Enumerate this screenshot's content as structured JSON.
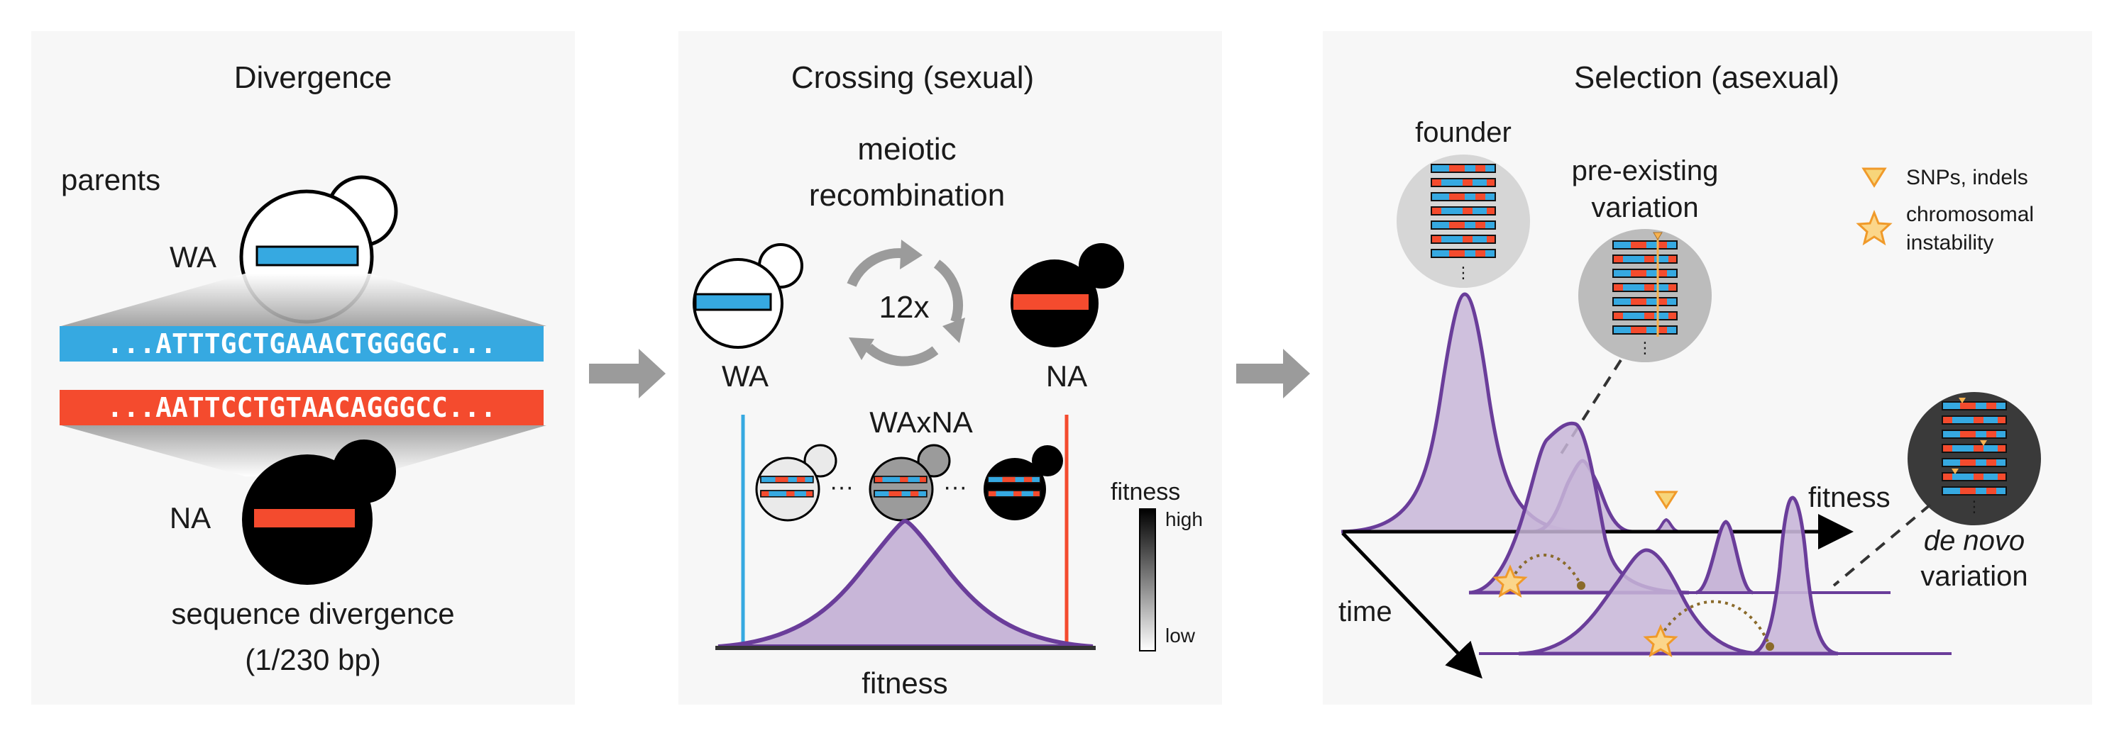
{
  "panels": {
    "divergence": {
      "title": "Divergence",
      "parents_label": "parents",
      "wa_label": "WA",
      "na_label": "NA",
      "wa_sequence": "...ATTTGCTGAAACTGGGGC...",
      "na_sequence": "...AATTCCTGTAACAGGGCC...",
      "caption_line1": "sequence divergence",
      "caption_line2": "(1/230 bp)"
    },
    "crossing": {
      "title": "Crossing (sexual)",
      "process_line1": "meiotic",
      "process_line2": "recombination",
      "cycles": "12x",
      "wa_label": "WA",
      "na_label": "NA",
      "hybrid_label": "WAxNA",
      "ellipsis": "···",
      "axis_label": "fitness",
      "colorbar_title": "fitness",
      "colorbar_high": "high",
      "colorbar_low": "low"
    },
    "selection": {
      "title": "Selection (asexual)",
      "founder_label": "founder",
      "preexisting_line1": "pre-existing",
      "preexisting_line2": "variation",
      "legend_snp": "SNPs, indels",
      "legend_chrom_line1": "chromosomal",
      "legend_chrom_line2": "instability",
      "axis_fitness": "fitness",
      "axis_time": "time",
      "denovo_line1": "de novo",
      "denovo_line2": "variation"
    }
  },
  "colors": {
    "wa_blue": "#36a9e1",
    "na_red": "#f44b2e",
    "density_purple": "#6a3d9a",
    "density_fill": "#c8b6d8",
    "star_orange": "#f7b24f",
    "panel_bg": "#f7f7f7",
    "arrow_grey": "#9b9b9b"
  }
}
